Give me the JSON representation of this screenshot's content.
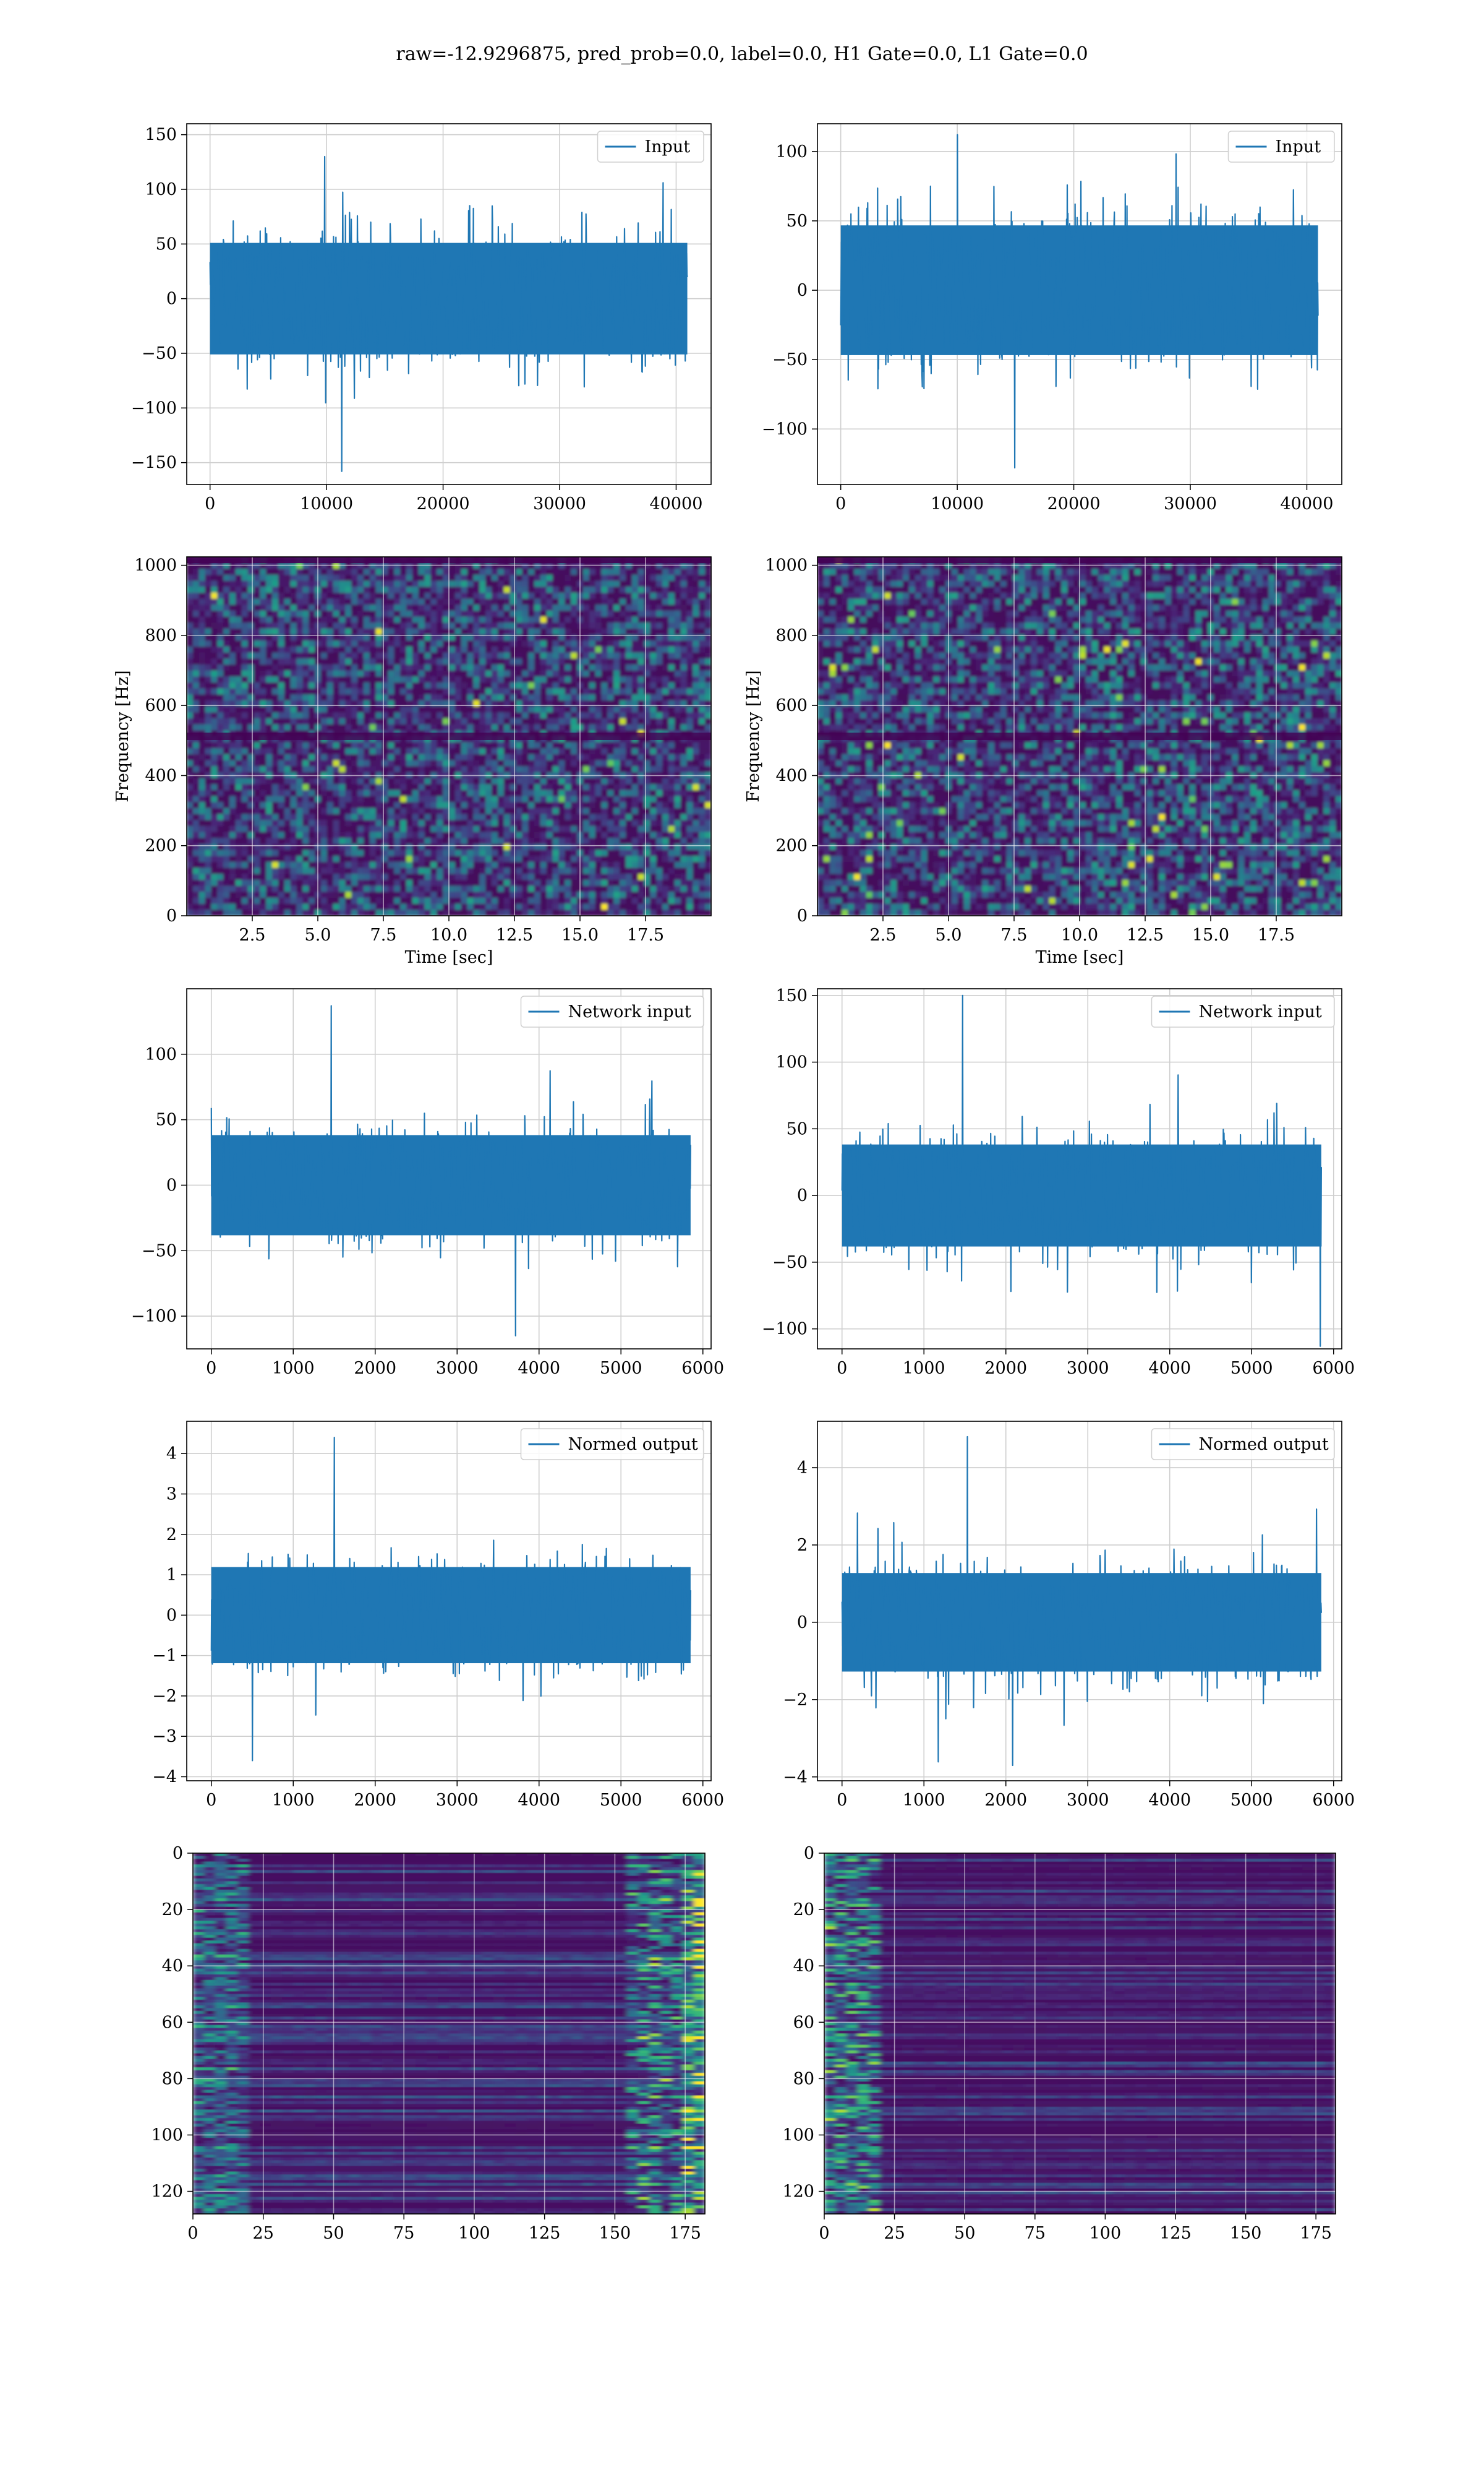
{
  "figure": {
    "title": "raw=-12.9296875, pred_prob=0.0, label=0.0, H1 Gate=0.0, L1 Gate=0.0"
  },
  "colors": {
    "line": "#1f77b4",
    "grid": "#cfcfcf",
    "viridis_dark": "#440154",
    "viridis_mid": "#21918c",
    "viridis_bright": "#fde725"
  },
  "chart_data": [
    {
      "id": "input-h1",
      "type": "line",
      "grid": true,
      "legend_position": "top-right",
      "title": "",
      "xlabel": "",
      "ylabel": "",
      "xlim": [
        -2000,
        43000
      ],
      "ylim": [
        -170,
        160
      ],
      "xticks": [
        0,
        10000,
        20000,
        30000,
        40000
      ],
      "yticks": [
        -150,
        -100,
        -50,
        0,
        50,
        100,
        150
      ],
      "series": [
        {
          "name": "Input",
          "x_range": [
            0,
            40960
          ],
          "envelope_low": -60,
          "envelope_high": 60,
          "peak_max": 130,
          "peak_min": -158
        }
      ]
    },
    {
      "id": "input-l1",
      "type": "line",
      "grid": true,
      "legend_position": "top-right",
      "title": "",
      "xlabel": "",
      "ylabel": "",
      "xlim": [
        -2000,
        43000
      ],
      "ylim": [
        -140,
        120
      ],
      "xticks": [
        0,
        10000,
        20000,
        30000,
        40000
      ],
      "yticks": [
        -100,
        -50,
        0,
        50,
        100
      ],
      "series": [
        {
          "name": "Input",
          "x_range": [
            0,
            40960
          ],
          "envelope_low": -55,
          "envelope_high": 55,
          "peak_max": 112,
          "peak_min": -128
        }
      ]
    },
    {
      "id": "spectrogram-h1",
      "type": "heatmap",
      "grid": true,
      "title": "",
      "xlabel": "Time [sec]",
      "ylabel": "Frequency [Hz]",
      "xlim": [
        0,
        20
      ],
      "ylim": [
        0,
        1024
      ],
      "xticks": [
        2.5,
        5.0,
        7.5,
        10.0,
        12.5,
        15.0,
        17.5
      ],
      "yticks": [
        0,
        200,
        400,
        600,
        800,
        1000
      ],
      "colormap": "viridis"
    },
    {
      "id": "spectrogram-l1",
      "type": "heatmap",
      "grid": true,
      "title": "",
      "xlabel": "Time [sec]",
      "ylabel": "Frequency [Hz]",
      "xlim": [
        0,
        20
      ],
      "ylim": [
        0,
        1024
      ],
      "xticks": [
        2.5,
        5.0,
        7.5,
        10.0,
        12.5,
        15.0,
        17.5
      ],
      "yticks": [
        0,
        200,
        400,
        600,
        800,
        1000
      ],
      "colormap": "viridis"
    },
    {
      "id": "network-input-h1",
      "type": "line",
      "grid": true,
      "legend_position": "top-right",
      "title": "",
      "xlabel": "",
      "ylabel": "",
      "xlim": [
        -300,
        6100
      ],
      "ylim": [
        -125,
        150
      ],
      "xticks": [
        0,
        1000,
        2000,
        3000,
        4000,
        5000,
        6000
      ],
      "yticks": [
        -100,
        -50,
        0,
        50,
        100
      ],
      "series": [
        {
          "name": "Network input",
          "x_range": [
            0,
            5850
          ],
          "envelope_low": -45,
          "envelope_high": 45,
          "peak_max": 137,
          "peak_min": -115
        }
      ]
    },
    {
      "id": "network-input-l1",
      "type": "line",
      "grid": true,
      "legend_position": "top-right",
      "title": "",
      "xlabel": "",
      "ylabel": "",
      "xlim": [
        -300,
        6100
      ],
      "ylim": [
        -115,
        155
      ],
      "xticks": [
        0,
        1000,
        2000,
        3000,
        4000,
        5000,
        6000
      ],
      "yticks": [
        -100,
        -50,
        0,
        50,
        100,
        150
      ],
      "series": [
        {
          "name": "Network input",
          "x_range": [
            0,
            5850
          ],
          "envelope_low": -45,
          "envelope_high": 45,
          "peak_max": 150,
          "peak_min": -113
        }
      ]
    },
    {
      "id": "normed-output-h1",
      "type": "line",
      "grid": true,
      "legend_position": "top-right",
      "title": "",
      "xlabel": "",
      "ylabel": "",
      "xlim": [
        -300,
        6100
      ],
      "ylim": [
        -4.1,
        4.8
      ],
      "xticks": [
        0,
        1000,
        2000,
        3000,
        4000,
        5000,
        6000
      ],
      "yticks": [
        -4,
        -3,
        -2,
        -1,
        0,
        1,
        2,
        3,
        4
      ],
      "series": [
        {
          "name": "Normed output",
          "x_range": [
            0,
            5850
          ],
          "envelope_low": -1.4,
          "envelope_high": 1.4,
          "peak_max": 4.4,
          "peak_min": -3.6
        }
      ]
    },
    {
      "id": "normed-output-l1",
      "type": "line",
      "grid": true,
      "legend_position": "top-right",
      "title": "",
      "xlabel": "",
      "ylabel": "",
      "xlim": [
        -300,
        6100
      ],
      "ylim": [
        -4.1,
        5.2
      ],
      "xticks": [
        0,
        1000,
        2000,
        3000,
        4000,
        5000,
        6000
      ],
      "yticks": [
        -4,
        -2,
        0,
        2,
        4
      ],
      "series": [
        {
          "name": "Normed output",
          "x_range": [
            0,
            5850
          ],
          "envelope_low": -1.5,
          "envelope_high": 1.5,
          "peak_max": 4.8,
          "peak_min": -3.7
        }
      ]
    },
    {
      "id": "feature-map-h1",
      "type": "heatmap",
      "grid": true,
      "title": "",
      "xlabel": "",
      "ylabel": "",
      "xlim": [
        0,
        182
      ],
      "ylim": [
        128,
        0
      ],
      "xticks": [
        0,
        25,
        50,
        75,
        100,
        125,
        150,
        175
      ],
      "yticks": [
        0,
        20,
        40,
        60,
        80,
        100,
        120
      ],
      "colormap": "viridis"
    },
    {
      "id": "feature-map-l1",
      "type": "heatmap",
      "grid": true,
      "title": "",
      "xlabel": "",
      "ylabel": "",
      "xlim": [
        0,
        182
      ],
      "ylim": [
        128,
        0
      ],
      "xticks": [
        0,
        25,
        50,
        75,
        100,
        125,
        150,
        175
      ],
      "yticks": [
        0,
        20,
        40,
        60,
        80,
        100,
        120
      ],
      "colormap": "viridis"
    }
  ]
}
